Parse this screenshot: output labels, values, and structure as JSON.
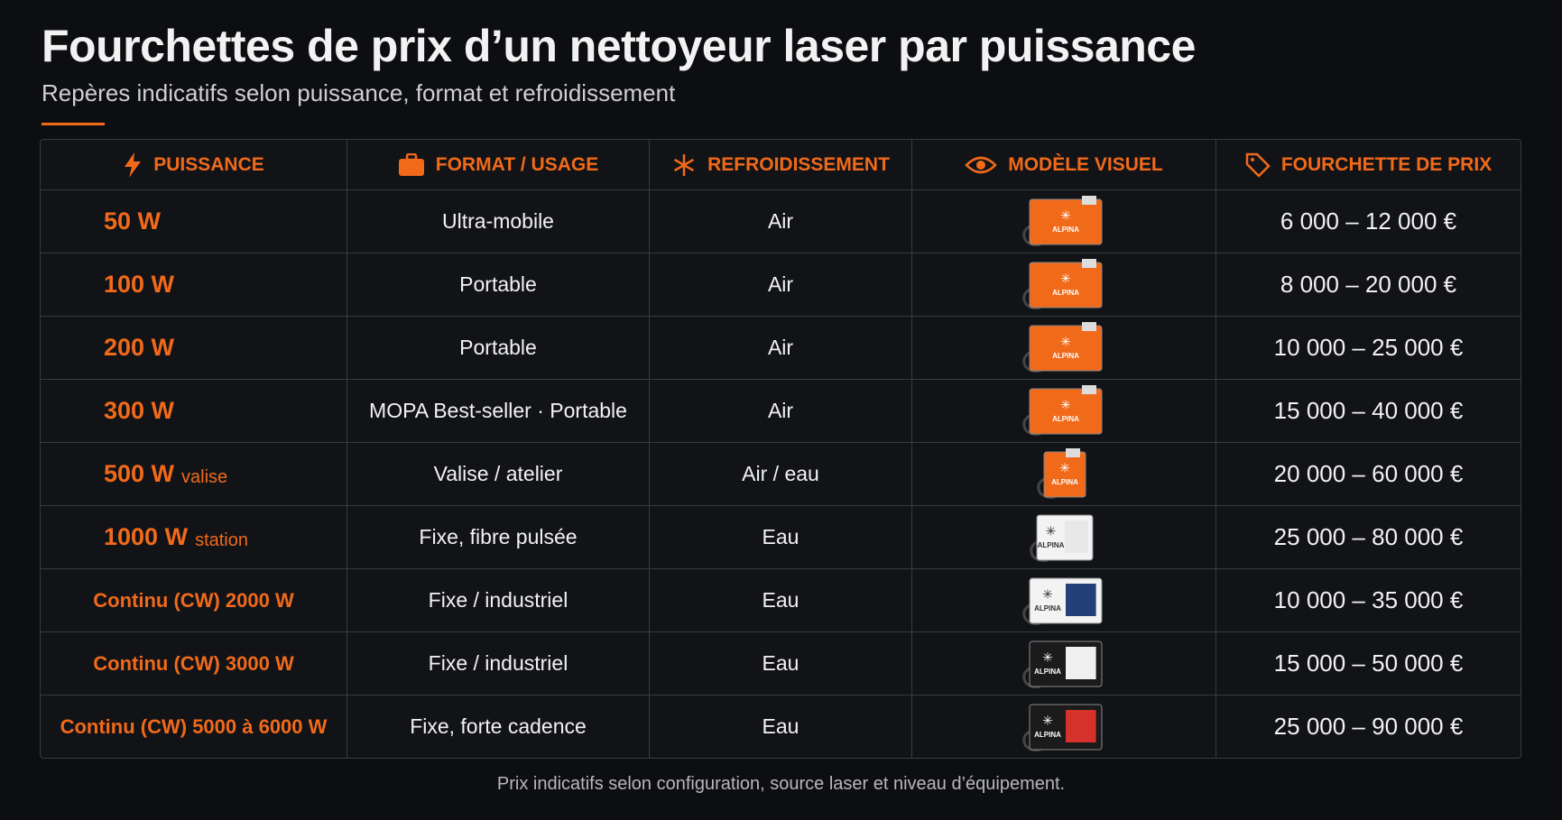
{
  "header": {
    "title": "Fourchettes de prix d’un nettoyeur laser par puissance",
    "subtitle": "Repères indicatifs selon puissance, format et refroidissement"
  },
  "table": {
    "columns": [
      "PUISSANCE",
      "FORMAT / USAGE",
      "REFROIDISSEMENT",
      "MODÈLE VISUEL",
      "FOURCHETTE DE PRIX"
    ],
    "brand": "ALPINA",
    "rows": [
      {
        "power": "50 W",
        "format": "Ultra-mobile",
        "cooling": "Air",
        "price": "6 000 – 12 000 €"
      },
      {
        "power": "100 W",
        "format": "Portable",
        "cooling": "Air",
        "price": "8 000 – 20 000 €"
      },
      {
        "power": "200 W",
        "format": "Portable",
        "cooling": "Air",
        "price": "10 000 – 25 000 €"
      },
      {
        "power": "300 W",
        "format": "MOPA Best-seller · Portable",
        "cooling": "Air",
        "price": "15 000 – 40 000 €"
      },
      {
        "power": "500 W",
        "note": "valise",
        "format": "Valise / atelier",
        "cooling": "Air / eau",
        "price": "20 000 – 60 000 €"
      },
      {
        "power": "1000 W",
        "note": "station",
        "format": "Fixe, fibre pulsée",
        "cooling": "Eau",
        "price": "25 000 – 80 000 €"
      },
      {
        "power": "Continu (CW) 2000 W",
        "format": "Fixe / industriel",
        "cooling": "Eau",
        "price": "10 000 – 35 000 €"
      },
      {
        "power": "Continu (CW) 3000 W",
        "format": "Fixe / industriel",
        "cooling": "Eau",
        "price": "15 000 – 50 000 €"
      },
      {
        "power": "Continu (CW) 5000 à 6000 W",
        "format": "Fixe, forte cadence",
        "cooling": "Eau",
        "price": "25 000 – 90 000 €"
      }
    ]
  },
  "footer": "Prix indicatifs selon configuration, source laser et niveau d’équipement."
}
